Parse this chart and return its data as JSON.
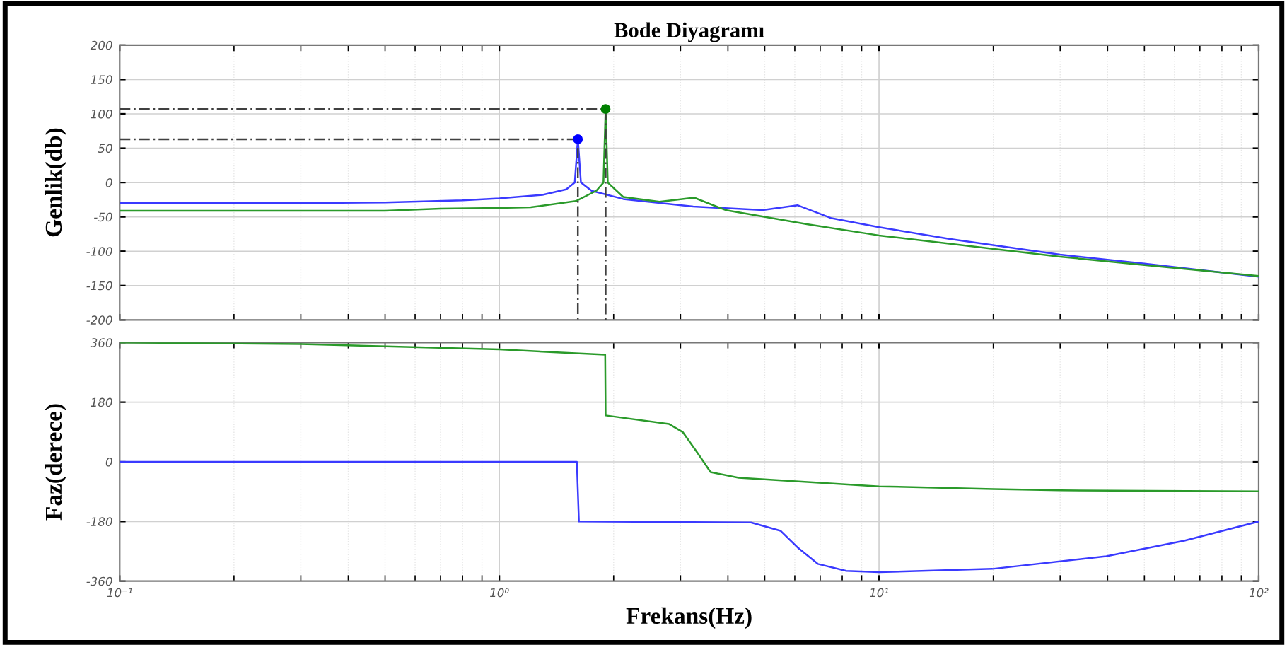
{
  "chart_data": [
    {
      "type": "line",
      "title": "Bode Diyagramı",
      "ylabel": "Genlik(db)",
      "log": "x",
      "grid": true,
      "tick_labels": "y",
      "xlim": [
        0.1,
        100
      ],
      "xticks": [
        {
          "value": 0.1,
          "label": null
        },
        {
          "value": 1,
          "label": null
        },
        {
          "value": 10,
          "label": null
        },
        {
          "value": 100,
          "label": null
        }
      ],
      "ylim": [
        -200,
        200
      ],
      "yticks": [
        -200,
        -150,
        -100,
        -50,
        0,
        50,
        100,
        150,
        200
      ],
      "series": [
        {
          "color": "#3a3aff",
          "x": [
            0.1,
            0.3,
            0.5,
            0.8,
            1.0,
            1.3,
            1.5,
            1.58,
            1.61,
            1.64,
            1.75,
            2.12,
            3.24,
            4.94,
            6.1,
            7.5,
            10,
            15.3,
            30,
            50,
            100
          ],
          "values": [
            -30,
            -30,
            -29,
            -26,
            -23,
            -18,
            -10,
            0,
            63,
            0,
            -12,
            -24,
            -35,
            -40,
            -33,
            -52,
            -65,
            -82,
            -105,
            -118,
            -137
          ]
        },
        {
          "color": "#2a9a2a",
          "x": [
            0.1,
            0.5,
            0.7,
            1.0,
            1.21,
            1.59,
            1.8,
            1.88,
            1.905,
            1.93,
            2.12,
            2.64,
            3.26,
            3.94,
            6.5,
            10,
            15.3,
            30,
            50,
            100
          ],
          "values": [
            -41,
            -41,
            -38,
            -37,
            -36,
            -27,
            -12,
            0,
            107,
            0,
            -21,
            -28,
            -22,
            -40,
            -61,
            -77,
            -89,
            -108,
            -120,
            -136
          ]
        },
        {
          "type": "line",
          "line_style": "dashed",
          "color": "#404040",
          "x": [
            0.1,
            1.61,
            1.61
          ],
          "values": [
            63,
            63,
            -200
          ]
        },
        {
          "type": "line",
          "line_style": "dashed",
          "color": "#404040",
          "x": [
            0.1,
            1.905,
            1.905
          ],
          "values": [
            107,
            107,
            -200
          ]
        },
        {
          "type": "scatter",
          "marker": "circle",
          "color": "#0000ff",
          "x": [
            1.61
          ],
          "values": [
            63
          ]
        },
        {
          "type": "scatter",
          "marker": "circle",
          "color": "#008000",
          "x": [
            1.905
          ],
          "values": [
            107
          ]
        }
      ]
    },
    {
      "type": "line",
      "ylabel": "Faz(derece)",
      "xlabel": "Frekans(Hz)",
      "log": "x",
      "grid": true,
      "xlim": [
        0.1,
        100
      ],
      "xticks": [
        {
          "value": 0.1,
          "label": "10⁻¹"
        },
        {
          "value": 1,
          "label": "10⁰"
        },
        {
          "value": 10,
          "label": "10¹"
        },
        {
          "value": 100,
          "label": "10²"
        }
      ],
      "ylim": [
        -360,
        360
      ],
      "yticks": [
        -360,
        -180,
        0,
        180,
        360
      ],
      "series": [
        {
          "color": "#2a9a2a",
          "x": [
            0.1,
            0.3,
            1.0,
            1.9,
            1.905,
            2.8,
            3.04,
            3.33,
            3.6,
            4.27,
            10,
            20,
            30,
            100
          ],
          "values": [
            360,
            355,
            339,
            323,
            140,
            114,
            90,
            26,
            -31,
            -48,
            -74,
            -82,
            -86,
            -89
          ]
        },
        {
          "color": "#3a3aff",
          "x": [
            0.1,
            1.6,
            1.62,
            4.6,
            5.5,
            6.1,
            6.9,
            8.2,
            10,
            19.9,
            39.7,
            63.7,
            100
          ],
          "values": [
            0,
            0,
            -180,
            -183,
            -208,
            -258,
            -308,
            -329,
            -333,
            -323,
            -285,
            -238,
            -180
          ]
        }
      ]
    }
  ]
}
